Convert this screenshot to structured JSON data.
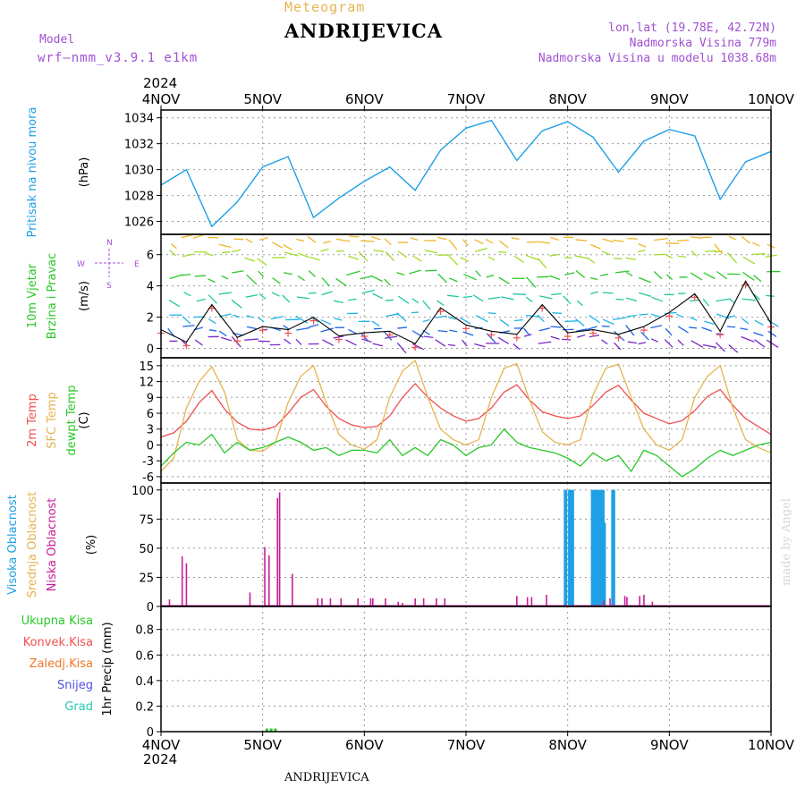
{
  "header": {
    "subtitle": "Meteogram",
    "station": "ANDRIJEVICA",
    "model_label": "Model",
    "model_name": "wrf—nmm_v3.9.1  e1km",
    "coords": "lon,lat (19.78E, 42.72N)",
    "altitude": "Nadmorska Visina 779m",
    "model_altitude": "Nadmorska Visina u modelu 1038.68m",
    "year_top": "2024",
    "year_bottom": "2024",
    "footer_station": "ANDRIJEVICA",
    "credit": "made by Angel"
  },
  "colors": {
    "pressure": "#1ea0e6",
    "t2m": "#f05050",
    "sfc": "#e6b450",
    "dew": "#28c828",
    "cloud_high": "#1ea0e6",
    "cloud_low": "#c81e96",
    "grid": "#999999"
  },
  "wind_legend": {
    "n": "N",
    "s": "S",
    "w": "W",
    "e": "E"
  },
  "chart_data": [
    {
      "type": "line",
      "panel": "pressure",
      "ylabel": "(hPa)",
      "side_labels": [
        "Pritisak na nivou mora"
      ],
      "ylim": [
        1025,
        1034.6
      ],
      "yticks": [
        1026,
        1028,
        1030,
        1032,
        1034
      ],
      "x": [
        0,
        6,
        12,
        18,
        24,
        30,
        36,
        42,
        48,
        54,
        60,
        66,
        72,
        78,
        84,
        90,
        96,
        102,
        108,
        114,
        120,
        126,
        132,
        138,
        144
      ],
      "series": [
        {
          "values": [
            1028.8,
            1030.0,
            1025.6,
            1027.5,
            1030.2,
            1031.0,
            1026.3,
            1027.8,
            1029.1,
            1030.2,
            1028.4,
            1031.5,
            1033.2,
            1033.8,
            1030.7,
            1033.0,
            1033.7,
            1032.5,
            1029.8,
            1032.2,
            1033.1,
            1032.6,
            1027.7,
            1030.6,
            1031.4
          ]
        }
      ]
    },
    {
      "type": "line",
      "panel": "wind",
      "ylabel": "(m/s)",
      "side_labels": [
        "10m Vjetar",
        "Brzina i Pravac"
      ],
      "ylim": [
        -0.6,
        7.3
      ],
      "yticks": [
        0,
        2,
        4,
        6
      ],
      "x": [
        0,
        6,
        12,
        18,
        24,
        30,
        36,
        42,
        48,
        54,
        60,
        66,
        72,
        78,
        84,
        90,
        96,
        102,
        108,
        114,
        120,
        126,
        132,
        138,
        144
      ],
      "series": [
        {
          "values": [
            1.2,
            0.4,
            2.8,
            0.7,
            1.4,
            1.2,
            2.0,
            0.8,
            1.0,
            1.1,
            0.3,
            2.6,
            1.5,
            1.1,
            0.9,
            2.8,
            1.0,
            1.2,
            0.9,
            1.4,
            2.3,
            3.5,
            1.1,
            4.3,
            1.6
          ]
        }
      ]
    },
    {
      "type": "line",
      "panel": "temperature",
      "ylabel": "(C)",
      "side_labels": [
        "2m Temp",
        "SFC Temp",
        "dewpt Temp"
      ],
      "ylim": [
        -7.2,
        16.5
      ],
      "yticks": [
        -6,
        -3,
        0,
        3,
        6,
        9,
        12,
        15
      ],
      "x": [
        0,
        3,
        6,
        9,
        12,
        15,
        18,
        21,
        24,
        27,
        30,
        33,
        36,
        39,
        42,
        45,
        48,
        51,
        54,
        57,
        60,
        63,
        66,
        69,
        72,
        75,
        78,
        81,
        84,
        87,
        90,
        93,
        96,
        99,
        102,
        105,
        108,
        111,
        114,
        117,
        120,
        123,
        126,
        129,
        132,
        135,
        138,
        141,
        144
      ],
      "series": [
        {
          "name": "2m Temp",
          "values": [
            1.5,
            2.3,
            4.5,
            8.0,
            10.3,
            6.8,
            4.3,
            3.0,
            2.8,
            3.5,
            6.0,
            9.0,
            10.5,
            7.3,
            5.0,
            3.8,
            3.3,
            3.5,
            5.5,
            9.0,
            11.6,
            9.0,
            7.0,
            5.5,
            4.5,
            5.0,
            7.0,
            10.0,
            11.4,
            8.5,
            6.3,
            5.5,
            5.0,
            5.5,
            7.5,
            10.0,
            11.3,
            8.5,
            6.0,
            5.0,
            4.0,
            4.6,
            6.5,
            9.2,
            10.5,
            7.5,
            5.0,
            3.5,
            2.0
          ]
        },
        {
          "name": "SFC Temp",
          "values": [
            -5.0,
            -2.5,
            7.0,
            12.0,
            14.8,
            10.0,
            1.0,
            -1.0,
            -1.2,
            0.5,
            8.0,
            13.0,
            15.0,
            8.0,
            2.0,
            0.0,
            -0.8,
            1.0,
            9.0,
            14.0,
            16.0,
            9.0,
            3.0,
            1.0,
            0.0,
            1.0,
            9.0,
            14.5,
            15.4,
            8.5,
            2.5,
            0.5,
            0.0,
            1.0,
            9.5,
            14.5,
            15.3,
            9.0,
            3.0,
            0.0,
            -1.0,
            1.0,
            9.0,
            13.0,
            15.0,
            7.0,
            1.0,
            -0.5,
            -1.5
          ]
        },
        {
          "name": "dewpt Temp",
          "values": [
            -4.0,
            -1.5,
            0.5,
            0.0,
            2.0,
            -1.5,
            0.5,
            -1.0,
            -0.5,
            0.5,
            1.5,
            0.5,
            -1.0,
            -0.5,
            -2.0,
            -1.0,
            -1.0,
            -1.5,
            1.0,
            -2.0,
            -0.5,
            -2.0,
            1.0,
            0.0,
            -2.0,
            -0.5,
            0.0,
            3.0,
            0.5,
            -0.5,
            -1.0,
            -1.5,
            -2.5,
            -4.0,
            -1.5,
            -3.0,
            -2.0,
            -5.0,
            -1.0,
            -2.0,
            -4.0,
            -6.0,
            -4.5,
            -2.5,
            -1.0,
            -2.0,
            -1.0,
            0.0,
            0.5
          ]
        }
      ]
    },
    {
      "type": "bar",
      "panel": "clouds",
      "ylabel": "(%)",
      "side_labels": [
        "Visoka Oblacnost",
        "Srednja Oblacnost",
        "Niska Oblacnost"
      ],
      "ylim": [
        0,
        106
      ],
      "yticks": [
        0,
        25,
        50,
        75,
        100
      ],
      "series": [
        {
          "name": "Visoka Oblacnost",
          "x": [
            95.4,
            95.6,
            96.4,
            96.6,
            96.9,
            97.2,
            101.8,
            102.2,
            102.4,
            102.6,
            103.0,
            103.4,
            103.8,
            104.1,
            104.4,
            104.7,
            106.6,
            106.9
          ],
          "values": [
            100,
            100,
            100,
            100,
            100,
            100,
            100,
            100,
            100,
            100,
            100,
            100,
            100,
            100,
            100,
            72,
            100,
            100
          ]
        },
        {
          "name": "Niska Oblacnost",
          "x": [
            2,
            5,
            6,
            21,
            24.5,
            25.5,
            27.5,
            28,
            31,
            37,
            38,
            40,
            42.5,
            46.5,
            49.5,
            50,
            53,
            56,
            57,
            60,
            62,
            65,
            67,
            84,
            86.5,
            87.5,
            91,
            104.5,
            106,
            109.5,
            110,
            113,
            114,
            116
          ],
          "values": [
            6,
            43,
            37,
            12,
            51,
            44,
            93,
            98,
            28,
            7,
            7,
            7,
            7,
            7,
            7,
            7,
            7,
            4,
            3,
            7,
            7,
            7,
            7,
            9,
            8,
            8,
            10,
            5,
            7,
            9,
            8,
            9,
            10,
            4
          ]
        }
      ]
    },
    {
      "type": "bar",
      "panel": "precip",
      "ylabel": "1hr Precip (mm)",
      "side_labels": [
        "Ukupna Kisa",
        "Konvek.Kisa",
        "Zaledj.Kisa",
        "Snijeg",
        "Grad"
      ],
      "ylim": [
        0,
        0.98
      ],
      "yticks": [
        0,
        0.2,
        0.4,
        0.6,
        0.8
      ],
      "series": [
        {
          "name": "Ukupna Kisa",
          "x": [
            25,
            26,
            27
          ],
          "values": [
            0.01,
            0.01,
            0.01
          ]
        }
      ]
    }
  ],
  "x_axis": {
    "min": 0,
    "max": 144,
    "ticks": [
      0,
      24,
      48,
      72,
      96,
      120,
      144
    ],
    "labels": [
      "4NOV",
      "5NOV",
      "6NOV",
      "7NOV",
      "8NOV",
      "9NOV",
      "10NOV"
    ]
  }
}
